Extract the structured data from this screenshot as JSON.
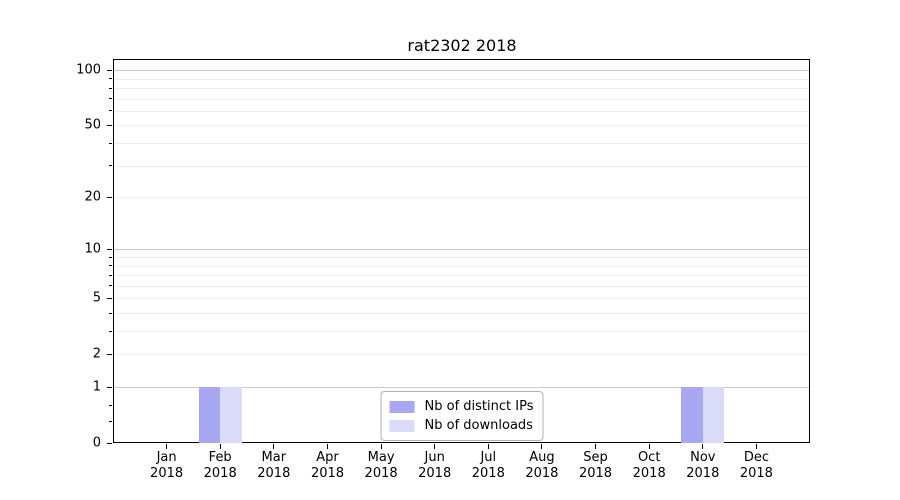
{
  "chart_data": {
    "type": "bar",
    "title": "rat2302 2018",
    "xlabel": "",
    "ylabel": "",
    "categories": [
      "Jan",
      "Feb",
      "Mar",
      "Apr",
      "May",
      "Jun",
      "Jul",
      "Aug",
      "Sep",
      "Oct",
      "Nov",
      "Dec"
    ],
    "category_year": "2018",
    "series": [
      {
        "name": "Nb of distinct IPs",
        "color": "#a8a8f2",
        "values": [
          0,
          1,
          0,
          0,
          0,
          0,
          0,
          0,
          0,
          0,
          1,
          0
        ]
      },
      {
        "name": "Nb of downloads",
        "color": "#dadaf9",
        "values": [
          0,
          1,
          0,
          0,
          0,
          0,
          0,
          0,
          0,
          0,
          1,
          0
        ]
      }
    ],
    "scale": "log1p",
    "ylim": [
      0,
      115
    ],
    "y_ticks": [
      0,
      1,
      2,
      5,
      10,
      20,
      50,
      100
    ],
    "y_tick_labels": [
      "0",
      "1",
      "2",
      "5",
      "10",
      "20",
      "50",
      "100"
    ],
    "y_minor_ticks": [
      0.3,
      0.6,
      3,
      4,
      6,
      7,
      8,
      9,
      30,
      40,
      60,
      70,
      80,
      90
    ],
    "y_gridlines_major": [
      1,
      10,
      100
    ],
    "y_gridlines_minor": [
      2,
      3,
      4,
      5,
      6,
      7,
      8,
      9,
      20,
      30,
      40,
      50,
      60,
      70,
      80,
      90
    ],
    "grid": true,
    "legend_position": "lower center",
    "axis_color": "#000000",
    "background_color": "#ffffff"
  }
}
